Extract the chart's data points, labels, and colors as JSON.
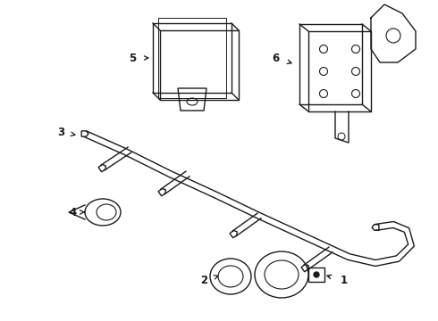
{
  "background_color": "#ffffff",
  "line_color": "#1a1a1a",
  "line_width": 1.0,
  "figsize": [
    4.9,
    3.6
  ],
  "dpi": 100,
  "xlim": [
    0,
    490
  ],
  "ylim": [
    0,
    360
  ]
}
